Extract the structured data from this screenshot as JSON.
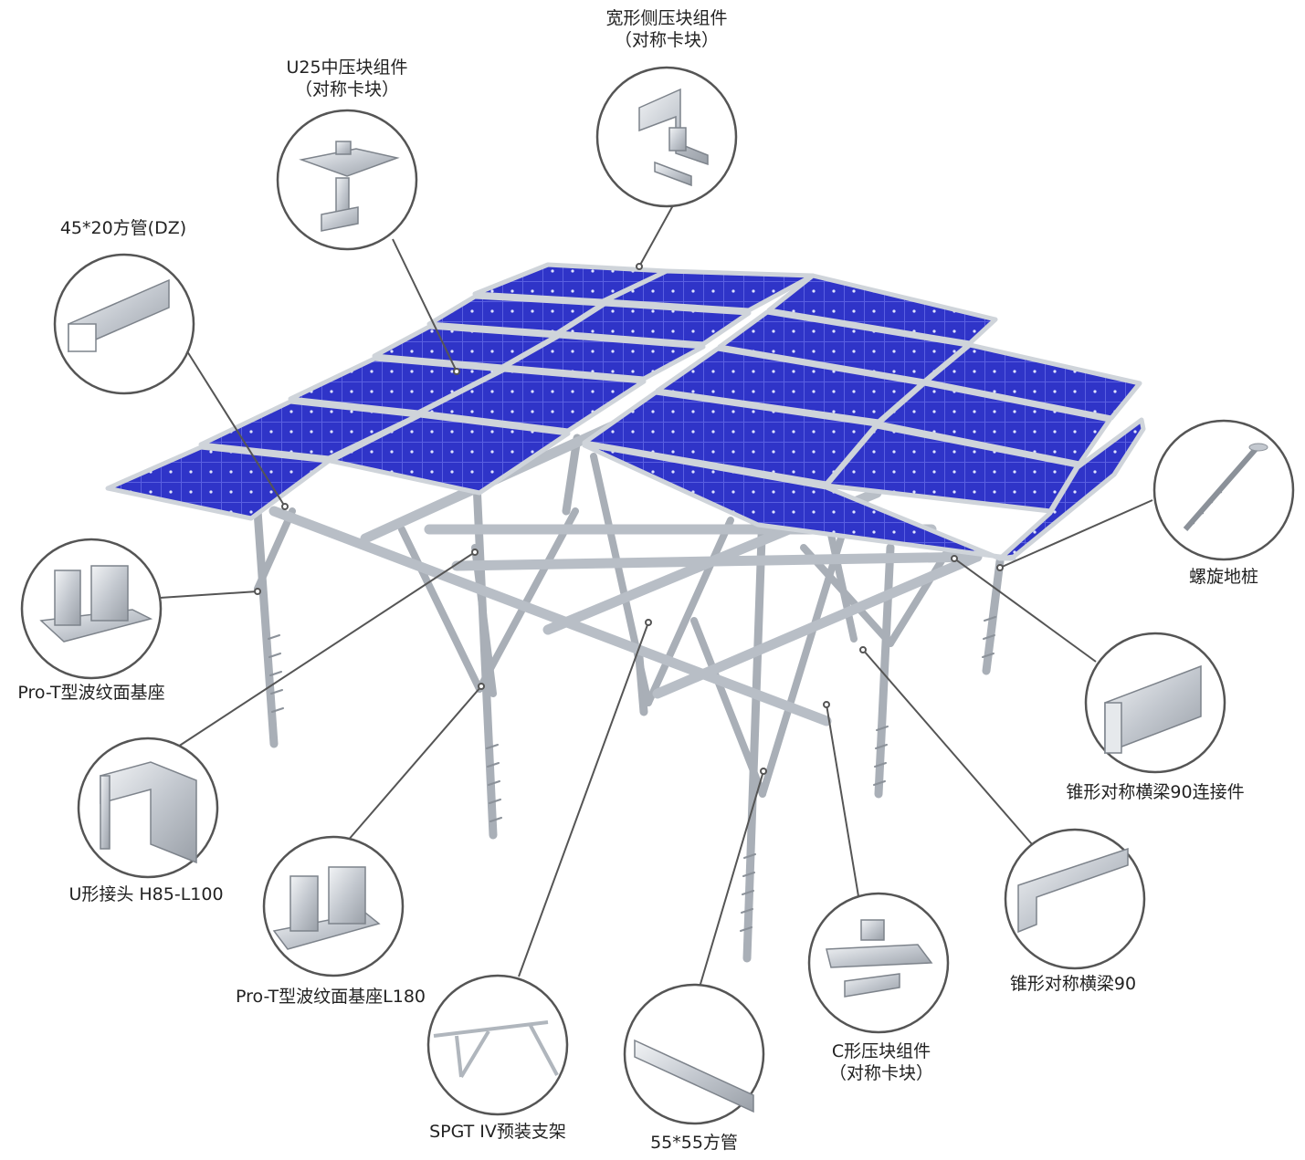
{
  "colors": {
    "panel": "#2f34c8",
    "panel_dark": "#1e2399",
    "frame": "#c9ced4",
    "steel": "#b8bec6",
    "steel_dark": "#8b9199",
    "callout_line": "#555555",
    "circle_stroke": "#555555"
  },
  "components": [
    {
      "id": "wide-side-clamp",
      "line1": "宽形侧压块组件",
      "line2": "（对称卡块）",
      "icon": "clamp-icon"
    },
    {
      "id": "u25-mid-clamp",
      "line1": "U25中压块组件",
      "line2": "（对称卡块）",
      "icon": "clamp-icon"
    },
    {
      "id": "square-tube-45x20",
      "line1": "45*20方管(DZ)",
      "line2": "",
      "icon": "tube-icon"
    },
    {
      "id": "ground-screw",
      "line1": "螺旋地桩",
      "line2": "",
      "icon": "screw-pile-icon"
    },
    {
      "id": "pro-t-base",
      "line1": "Pro-T型波纹面基座",
      "line2": "",
      "icon": "base-icon"
    },
    {
      "id": "beam-connector",
      "line1": "锥形对称横梁90连接件",
      "line2": "",
      "icon": "connector-icon"
    },
    {
      "id": "u-joint",
      "line1": "U形接头 H85-L100",
      "line2": "",
      "icon": "u-joint-icon"
    },
    {
      "id": "tapered-beam",
      "line1": "锥形对称横梁90",
      "line2": "",
      "icon": "beam-icon"
    },
    {
      "id": "pro-t-base-l180",
      "line1": "Pro-T型波纹面基座L180",
      "line2": "",
      "icon": "base-icon"
    },
    {
      "id": "c-clamp",
      "line1": "C形压块组件",
      "line2": "（对称卡块）",
      "icon": "clamp-icon"
    },
    {
      "id": "spgt-bracket",
      "line1": "SPGT IV预装支架",
      "line2": "",
      "icon": "bracket-icon"
    },
    {
      "id": "square-tube-55x55",
      "line1": "55*55方管",
      "line2": "",
      "icon": "tube-icon"
    }
  ]
}
